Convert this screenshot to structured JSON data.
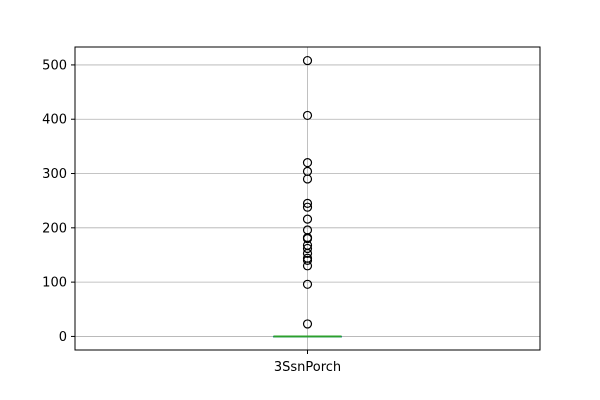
{
  "chart_data": {
    "type": "boxplot",
    "categories": [
      "3SsnPorch"
    ],
    "ylim": [
      -25,
      533
    ],
    "yticks": [
      0,
      100,
      200,
      300,
      400,
      500
    ],
    "grid": true,
    "box": {
      "q1": 0,
      "median": 0,
      "q3": 0,
      "whisker_low": 0,
      "whisker_high": 0
    },
    "outliers": [
      23,
      96,
      130,
      140,
      144,
      153,
      162,
      168,
      180,
      182,
      196,
      216,
      238,
      245,
      290,
      304,
      320,
      407,
      508
    ],
    "colors": {
      "box": "#1f77b4",
      "median": "#2ca02c",
      "outlier_edge": "#000000",
      "grid": "#b0b0b0",
      "axes": "#000000"
    }
  }
}
